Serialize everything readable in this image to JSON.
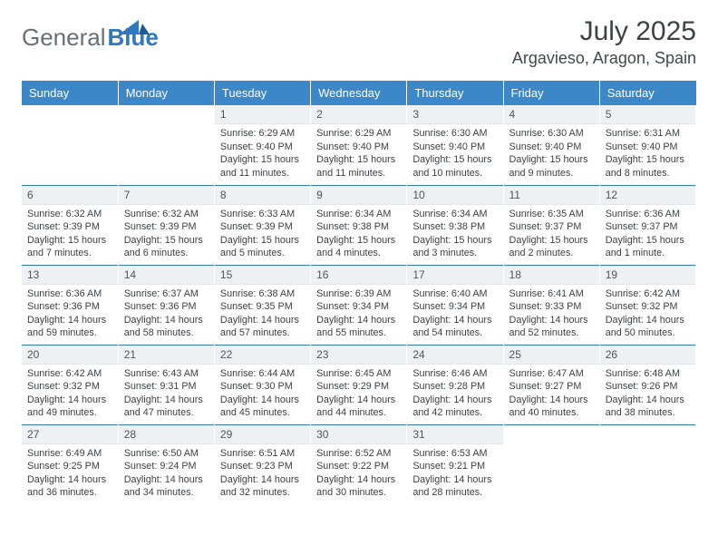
{
  "brand": {
    "word1": "General",
    "word2": "Blue"
  },
  "title": "July 2025",
  "location": "Argavieso, Aragon, Spain",
  "colors": {
    "header_bg": "#3b87c8",
    "header_text": "#ffffff",
    "rule": "#2f78bf",
    "daynum_bg": "#eef1f4",
    "body_text": "#3c4044",
    "logo_gray": "#6a6f76",
    "logo_blue": "#2f78bf"
  },
  "columns": [
    "Sunday",
    "Monday",
    "Tuesday",
    "Wednesday",
    "Thursday",
    "Friday",
    "Saturday"
  ],
  "label": {
    "sunrise": "Sunrise:",
    "sunset": "Sunset:",
    "daylight": "Daylight:"
  },
  "weeks": [
    [
      null,
      null,
      {
        "n": "1",
        "sr": "6:29 AM",
        "ss": "9:40 PM",
        "dl": "15 hours and 11 minutes."
      },
      {
        "n": "2",
        "sr": "6:29 AM",
        "ss": "9:40 PM",
        "dl": "15 hours and 11 minutes."
      },
      {
        "n": "3",
        "sr": "6:30 AM",
        "ss": "9:40 PM",
        "dl": "15 hours and 10 minutes."
      },
      {
        "n": "4",
        "sr": "6:30 AM",
        "ss": "9:40 PM",
        "dl": "15 hours and 9 minutes."
      },
      {
        "n": "5",
        "sr": "6:31 AM",
        "ss": "9:40 PM",
        "dl": "15 hours and 8 minutes."
      }
    ],
    [
      {
        "n": "6",
        "sr": "6:32 AM",
        "ss": "9:39 PM",
        "dl": "15 hours and 7 minutes."
      },
      {
        "n": "7",
        "sr": "6:32 AM",
        "ss": "9:39 PM",
        "dl": "15 hours and 6 minutes."
      },
      {
        "n": "8",
        "sr": "6:33 AM",
        "ss": "9:39 PM",
        "dl": "15 hours and 5 minutes."
      },
      {
        "n": "9",
        "sr": "6:34 AM",
        "ss": "9:38 PM",
        "dl": "15 hours and 4 minutes."
      },
      {
        "n": "10",
        "sr": "6:34 AM",
        "ss": "9:38 PM",
        "dl": "15 hours and 3 minutes."
      },
      {
        "n": "11",
        "sr": "6:35 AM",
        "ss": "9:37 PM",
        "dl": "15 hours and 2 minutes."
      },
      {
        "n": "12",
        "sr": "6:36 AM",
        "ss": "9:37 PM",
        "dl": "15 hours and 1 minute."
      }
    ],
    [
      {
        "n": "13",
        "sr": "6:36 AM",
        "ss": "9:36 PM",
        "dl": "14 hours and 59 minutes."
      },
      {
        "n": "14",
        "sr": "6:37 AM",
        "ss": "9:36 PM",
        "dl": "14 hours and 58 minutes."
      },
      {
        "n": "15",
        "sr": "6:38 AM",
        "ss": "9:35 PM",
        "dl": "14 hours and 57 minutes."
      },
      {
        "n": "16",
        "sr": "6:39 AM",
        "ss": "9:34 PM",
        "dl": "14 hours and 55 minutes."
      },
      {
        "n": "17",
        "sr": "6:40 AM",
        "ss": "9:34 PM",
        "dl": "14 hours and 54 minutes."
      },
      {
        "n": "18",
        "sr": "6:41 AM",
        "ss": "9:33 PM",
        "dl": "14 hours and 52 minutes."
      },
      {
        "n": "19",
        "sr": "6:42 AM",
        "ss": "9:32 PM",
        "dl": "14 hours and 50 minutes."
      }
    ],
    [
      {
        "n": "20",
        "sr": "6:42 AM",
        "ss": "9:32 PM",
        "dl": "14 hours and 49 minutes."
      },
      {
        "n": "21",
        "sr": "6:43 AM",
        "ss": "9:31 PM",
        "dl": "14 hours and 47 minutes."
      },
      {
        "n": "22",
        "sr": "6:44 AM",
        "ss": "9:30 PM",
        "dl": "14 hours and 45 minutes."
      },
      {
        "n": "23",
        "sr": "6:45 AM",
        "ss": "9:29 PM",
        "dl": "14 hours and 44 minutes."
      },
      {
        "n": "24",
        "sr": "6:46 AM",
        "ss": "9:28 PM",
        "dl": "14 hours and 42 minutes."
      },
      {
        "n": "25",
        "sr": "6:47 AM",
        "ss": "9:27 PM",
        "dl": "14 hours and 40 minutes."
      },
      {
        "n": "26",
        "sr": "6:48 AM",
        "ss": "9:26 PM",
        "dl": "14 hours and 38 minutes."
      }
    ],
    [
      {
        "n": "27",
        "sr": "6:49 AM",
        "ss": "9:25 PM",
        "dl": "14 hours and 36 minutes."
      },
      {
        "n": "28",
        "sr": "6:50 AM",
        "ss": "9:24 PM",
        "dl": "14 hours and 34 minutes."
      },
      {
        "n": "29",
        "sr": "6:51 AM",
        "ss": "9:23 PM",
        "dl": "14 hours and 32 minutes."
      },
      {
        "n": "30",
        "sr": "6:52 AM",
        "ss": "9:22 PM",
        "dl": "14 hours and 30 minutes."
      },
      {
        "n": "31",
        "sr": "6:53 AM",
        "ss": "9:21 PM",
        "dl": "14 hours and 28 minutes."
      },
      null,
      null
    ]
  ]
}
